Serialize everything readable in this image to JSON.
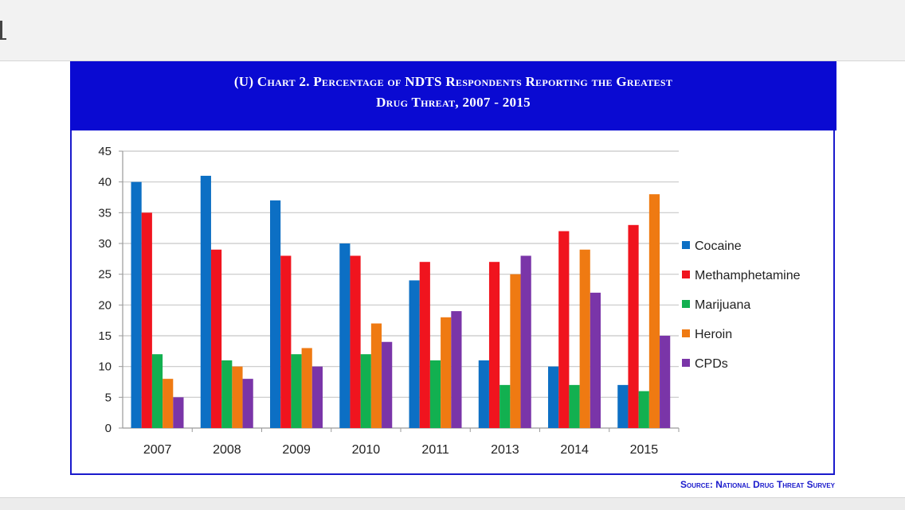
{
  "page": {
    "source": "Source:  National Drug Threat Survey"
  },
  "chart_data": {
    "type": "bar",
    "title": "(U)  Chart 2.  Percentage of NDTS Respondents Reporting the Greatest",
    "title_line2": "Drug Threat, 2007 - 2015",
    "categories": [
      "2007",
      "2008",
      "2009",
      "2010",
      "2011",
      "2013",
      "2014",
      "2015"
    ],
    "series": [
      {
        "name": "Cocaine",
        "color": "#0c6fc4",
        "values": [
          40,
          41,
          37,
          30,
          24,
          11,
          10,
          7
        ]
      },
      {
        "name": "Methamphetamine",
        "color": "#f0141e",
        "values": [
          35,
          29,
          28,
          28,
          27,
          27,
          32,
          33
        ]
      },
      {
        "name": "Marijuana",
        "color": "#12b050",
        "values": [
          12,
          11,
          12,
          12,
          11,
          7,
          7,
          6
        ]
      },
      {
        "name": "Heroin",
        "color": "#ef7a12",
        "values": [
          8,
          10,
          13,
          17,
          18,
          25,
          29,
          38
        ]
      },
      {
        "name": "CPDs",
        "color": "#7a35a8",
        "values": [
          5,
          8,
          10,
          14,
          19,
          28,
          22,
          15
        ]
      }
    ],
    "ylim": [
      0,
      45
    ],
    "yticks": [
      "0",
      "5",
      "10",
      "15",
      "20",
      "25",
      "30",
      "35",
      "40",
      "45"
    ],
    "grid": true,
    "legend_position": "right",
    "xlabel": "",
    "ylabel": ""
  }
}
